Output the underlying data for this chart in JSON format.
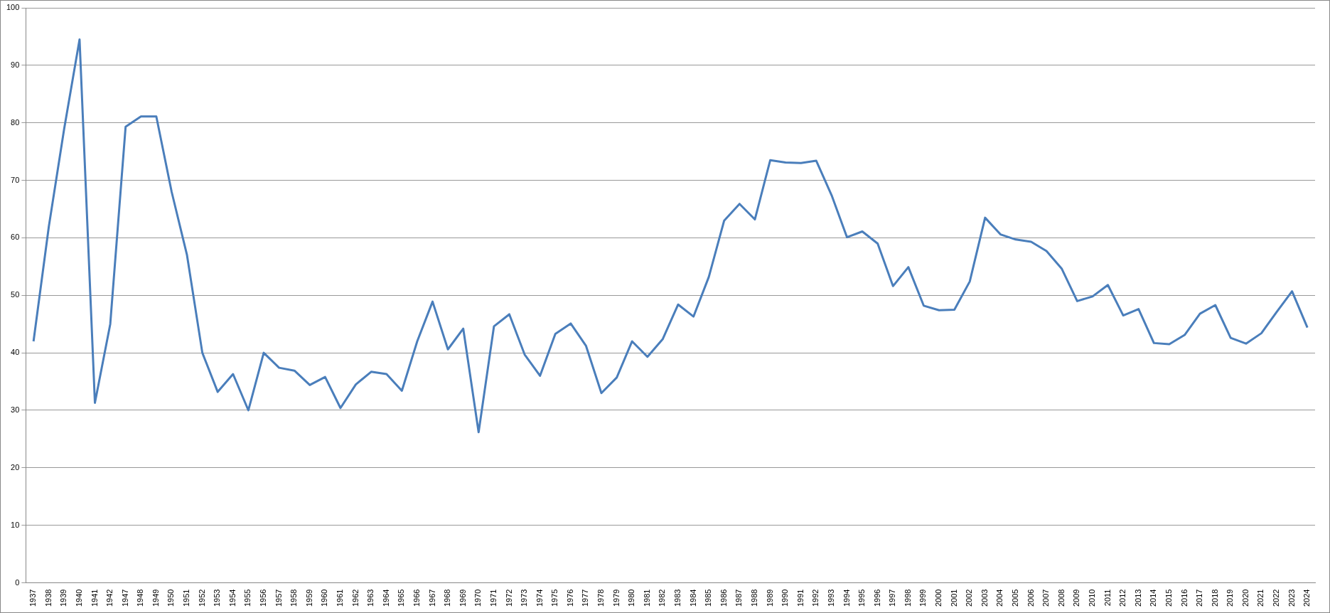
{
  "chart_data": {
    "type": "line",
    "categories": [
      "1937",
      "1938",
      "1939",
      "1940",
      "1941",
      "1942",
      "1947",
      "1948",
      "1949",
      "1950",
      "1951",
      "1952",
      "1953",
      "1954",
      "1955",
      "1956",
      "1957",
      "1958",
      "1959",
      "1960",
      "1961",
      "1962",
      "1963",
      "1964",
      "1965",
      "1966",
      "1967",
      "1968",
      "1969",
      "1970",
      "1971",
      "1972",
      "1973",
      "1974",
      "1975",
      "1976",
      "1977",
      "1978",
      "1979",
      "1980",
      "1981",
      "1982",
      "1983",
      "1984",
      "1985",
      "1986",
      "1987",
      "1988",
      "1989",
      "1990",
      "1991",
      "1992",
      "1993",
      "1994",
      "1995",
      "1996",
      "1997",
      "1998",
      "1999",
      "2000",
      "2001",
      "2002",
      "2003",
      "2004",
      "2005",
      "2006",
      "2007",
      "2008",
      "2009",
      "2010",
      "2011",
      "2012",
      "2013",
      "2014",
      "2015",
      "2016",
      "2017",
      "2018",
      "2019",
      "2020",
      "2021",
      "2022",
      "2023",
      "2024"
    ],
    "series": [
      {
        "color": "#4a7ebb",
        "values": [
          42,
          62,
          79,
          94.5,
          31.3,
          45,
          79.3,
          81.1,
          81.1,
          68,
          57,
          40,
          33.2,
          36.3,
          30,
          40,
          37.4,
          36.9,
          34.4,
          35.8,
          30.4,
          34.5,
          36.7,
          36.3,
          33.4,
          42,
          48.9,
          40.6,
          44.2,
          26.2,
          44.6,
          46.7,
          39.7,
          36,
          43.3,
          45.1,
          41.2,
          33,
          35.7,
          42,
          39.3,
          42.4,
          48.4,
          46.3,
          53.2,
          63,
          65.9,
          63.2,
          73.5,
          73.1,
          73,
          73.4,
          67.4,
          60.1,
          61.1,
          59,
          51.6,
          54.9,
          48.2,
          47.4,
          47.5,
          52.4,
          63.5,
          60.6,
          59.7,
          59.3,
          57.7,
          54.6,
          49,
          49.8,
          51.8,
          46.5,
          47.6,
          41.7,
          41.5,
          43.1,
          46.8,
          48.3,
          42.6,
          41.6,
          43.4,
          47.1,
          50.7,
          44.4
        ]
      }
    ],
    "ylim": [
      0,
      100
    ],
    "yticks": [
      0,
      10,
      20,
      30,
      40,
      50,
      60,
      70,
      80,
      90,
      100
    ],
    "grid": "y",
    "legend": false,
    "marker": "none",
    "line_style": "solid"
  }
}
